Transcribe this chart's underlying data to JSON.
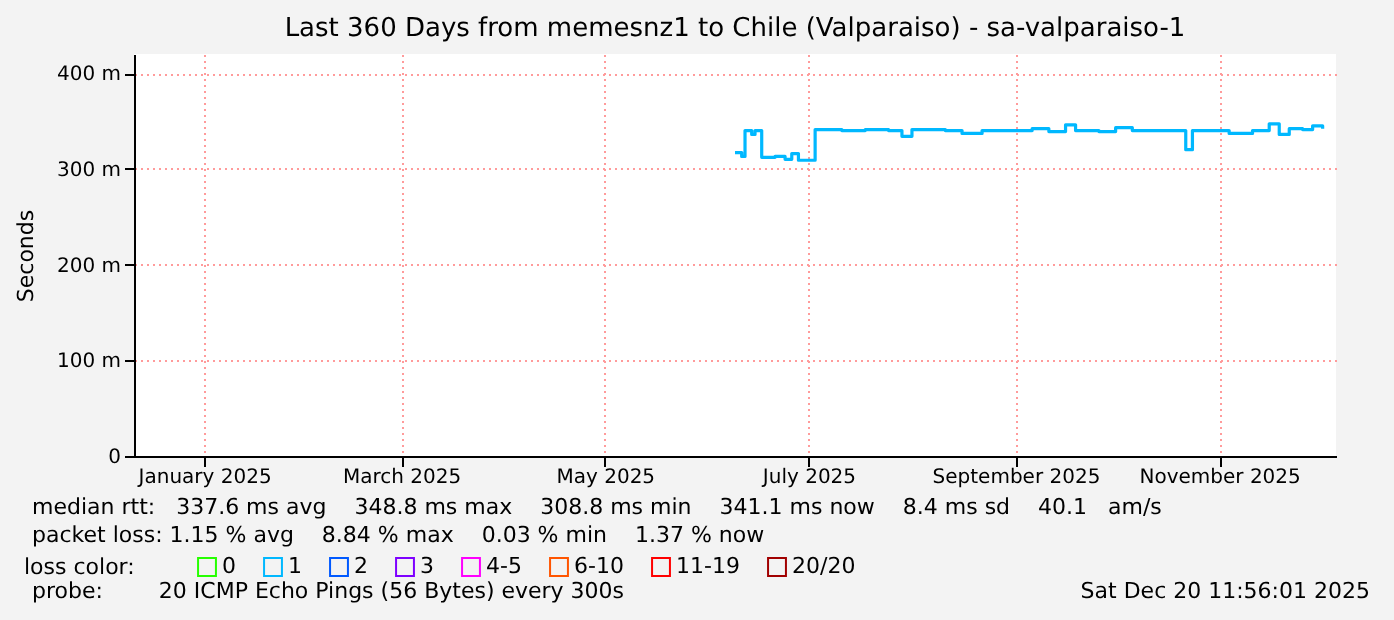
{
  "chart_data": {
    "type": "step",
    "title": "Last 360 Days from memesnz1 to Chile (Valparaiso) - sa-valparaiso-1",
    "ylabel": "Seconds",
    "legend_title": "loss color:",
    "legend": "bottom left",
    "grid": true,
    "marker": "none",
    "line_style": "solid",
    "x": [
      "2025-06-23",
      "2025-06-25",
      "2025-06-26",
      "2025-06-28",
      "2025-06-29",
      "2025-07-01",
      "2025-07-05",
      "2025-07-08",
      "2025-07-10",
      "2025-07-12",
      "2025-07-16",
      "2025-07-17",
      "2025-07-25",
      "2025-08-01",
      "2025-08-08",
      "2025-08-12",
      "2025-08-15",
      "2025-08-25",
      "2025-08-30",
      "2025-09-05",
      "2025-09-15",
      "2025-09-20",
      "2025-09-25",
      "2025-09-30",
      "2025-10-03",
      "2025-10-10",
      "2025-10-15",
      "2025-10-20",
      "2025-10-25",
      "2025-11-04",
      "2025-11-05",
      "2025-11-07",
      "2025-11-12",
      "2025-11-18",
      "2025-11-25",
      "2025-11-30",
      "2025-12-03",
      "2025-12-06",
      "2025-12-10",
      "2025-12-13",
      "2025-12-16"
    ],
    "series": [
      {
        "name": "0",
        "color": "#26ff00",
        "values": [
          null,
          null,
          null,
          null,
          null,
          null,
          null,
          null,
          null,
          null,
          null,
          null,
          null,
          null,
          null,
          null,
          null,
          null,
          null,
          null,
          null,
          null,
          null,
          null,
          null,
          null,
          null,
          null,
          null,
          null,
          null,
          null,
          null,
          null,
          null,
          null,
          null,
          null,
          null,
          null,
          null
        ]
      },
      {
        "name": "1",
        "color": "#00b8ff",
        "values": [
          317,
          313,
          340,
          336,
          340,
          312,
          313,
          310,
          316,
          309,
          309,
          341,
          340,
          341,
          340,
          334,
          341,
          340,
          337,
          340,
          340,
          342,
          339,
          346,
          340,
          339,
          343,
          340,
          340,
          340,
          320,
          340,
          340,
          337,
          340,
          347,
          336,
          342,
          341,
          345,
          342
        ]
      },
      {
        "name": "2",
        "color": "#0059ff",
        "values": [
          null,
          null,
          null,
          null,
          null,
          null,
          null,
          null,
          null,
          null,
          null,
          null,
          null,
          null,
          null,
          null,
          null,
          null,
          null,
          null,
          null,
          null,
          null,
          null,
          null,
          null,
          null,
          null,
          null,
          null,
          null,
          null,
          null,
          null,
          null,
          null,
          null,
          null,
          null,
          null,
          null
        ]
      },
      {
        "name": "3",
        "color": "#7e00ff",
        "values": [
          null,
          null,
          null,
          null,
          null,
          null,
          null,
          null,
          null,
          null,
          null,
          null,
          null,
          null,
          null,
          null,
          null,
          null,
          null,
          null,
          null,
          null,
          null,
          null,
          null,
          null,
          null,
          null,
          null,
          null,
          null,
          null,
          null,
          null,
          null,
          null,
          null,
          null,
          null,
          null,
          null
        ]
      },
      {
        "name": "4-5",
        "color": "#ff00ff",
        "values": [
          null,
          null,
          null,
          null,
          null,
          null,
          null,
          null,
          null,
          null,
          null,
          null,
          null,
          null,
          null,
          null,
          null,
          null,
          null,
          null,
          null,
          null,
          null,
          null,
          null,
          null,
          null,
          null,
          null,
          null,
          null,
          null,
          null,
          null,
          null,
          null,
          null,
          null,
          null,
          null,
          null
        ]
      },
      {
        "name": "6-10",
        "color": "#ff5500",
        "values": [
          null,
          null,
          null,
          null,
          null,
          null,
          null,
          null,
          null,
          null,
          null,
          null,
          null,
          null,
          null,
          null,
          null,
          null,
          null,
          null,
          null,
          null,
          null,
          null,
          null,
          null,
          null,
          null,
          null,
          null,
          null,
          null,
          null,
          null,
          null,
          null,
          null,
          null,
          null,
          null,
          null
        ]
      },
      {
        "name": "11-19",
        "color": "#ff0000",
        "values": [
          null,
          null,
          null,
          null,
          null,
          null,
          null,
          null,
          null,
          null,
          null,
          null,
          null,
          null,
          null,
          null,
          null,
          null,
          null,
          null,
          null,
          null,
          null,
          null,
          null,
          null,
          null,
          null,
          null,
          null,
          null,
          null,
          null,
          null,
          null,
          null,
          null,
          null,
          null,
          null,
          null
        ]
      },
      {
        "name": "20/20",
        "color": "#a10000",
        "values": [
          null,
          null,
          null,
          null,
          null,
          null,
          null,
          null,
          null,
          null,
          null,
          null,
          null,
          null,
          null,
          null,
          null,
          null,
          null,
          null,
          null,
          null,
          null,
          null,
          null,
          null,
          null,
          null,
          null,
          null,
          null,
          null,
          null,
          null,
          null,
          null,
          null,
          null,
          null,
          null,
          null
        ]
      }
    ],
    "xlim": [
      "2024-12-25",
      "2025-12-20"
    ],
    "xticks": [
      {
        "value": "2025-01-15",
        "label": "January 2025"
      },
      {
        "value": "2025-03-15",
        "label": "March 2025"
      },
      {
        "value": "2025-05-15",
        "label": "May 2025"
      },
      {
        "value": "2025-07-15",
        "label": "July 2025"
      },
      {
        "value": "2025-09-15",
        "label": "September 2025"
      },
      {
        "value": "2025-11-15",
        "label": "November 2025"
      }
    ],
    "ylim": [
      0,
      420
    ],
    "yticks": [
      0,
      {
        "value": 100,
        "label": "100 m"
      },
      {
        "value": 200,
        "label": "200 m"
      },
      {
        "value": 300,
        "label": "300 m"
      },
      {
        "value": 400,
        "label": "400 m"
      }
    ],
    "annotations": [
      "median rtt:   337.6 ms avg    348.8 ms max    308.8 ms min    341.1 ms now    8.4 ms sd    40.1   am/s",
      "packet loss: 1.15 % avg    8.84 % max    0.03 % min    1.37 % now",
      "probe:        20 ICMP Echo Pings (56 Bytes) every 300s",
      "Sat Dec 20 11:56:01 2025"
    ]
  }
}
